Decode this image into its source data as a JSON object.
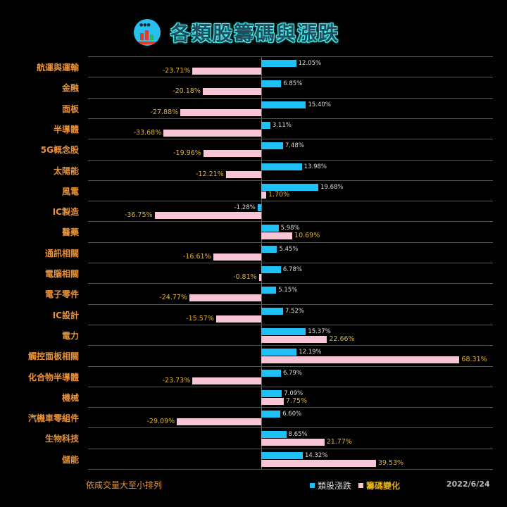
{
  "header": {
    "title": "各類股籌碼與漲跌",
    "logo_icon": "stock-chart-logo-icon"
  },
  "footer": {
    "note": "依成交量大至小排列",
    "date": "2022/6/24"
  },
  "legend": [
    {
      "label": "類股漲跌",
      "color": "#1ec0f5"
    },
    {
      "label": "籌碼變化",
      "color": "#f7c5d3"
    }
  ],
  "colors": {
    "background": "#000000",
    "price_change_bar": "#1ec0f5",
    "chip_change_bar": "#f7c5d3",
    "category_label": "#e8923a",
    "chip_value_label": "#e0b030"
  },
  "chart_data": {
    "type": "bar",
    "orientation": "horizontal",
    "title": "各類股籌碼與漲跌",
    "xlabel": "",
    "ylabel": "",
    "grid": true,
    "legend_position": "bottom",
    "categories": [
      "航運與運輸",
      "金融",
      "面板",
      "半導體",
      "5G概念股",
      "太陽能",
      "風電",
      "IC製造",
      "醫藥",
      "通訊相關",
      "電腦相關",
      "電子零件",
      "IC設計",
      "電力",
      "觸控面板相關",
      "化合物半導體",
      "機械",
      "汽機車零組件",
      "生物科技",
      "儲能"
    ],
    "series": [
      {
        "name": "類股漲跌",
        "values": [
          12.05,
          6.85,
          15.4,
          3.11,
          7.48,
          13.98,
          19.68,
          -1.28,
          5.98,
          5.45,
          6.78,
          5.15,
          7.52,
          15.37,
          12.19,
          6.79,
          7.09,
          6.6,
          8.65,
          14.32
        ],
        "labels": [
          "12.05%",
          "6.85%",
          "15.40%",
          "3.11%",
          "7.48%",
          "13.98%",
          "19.68%",
          "-1.28%",
          "5.98%",
          "5.45%",
          "6.78%",
          "5.15%",
          "7.52%",
          "15.37%",
          "12.19%",
          "6.79%",
          "7.09%",
          "6.60%",
          "8.65%",
          "14.32%"
        ]
      },
      {
        "name": "籌碼變化",
        "values": [
          -23.71,
          -20.18,
          -27.88,
          -33.68,
          -19.96,
          -12.21,
          1.7,
          -36.75,
          10.69,
          -16.61,
          -0.81,
          -24.77,
          -15.57,
          22.66,
          68.31,
          -23.73,
          7.75,
          -29.09,
          21.77,
          39.53
        ],
        "labels": [
          "-23.71%",
          "-20.18%",
          "-27.88%",
          "-33.68%",
          "-19.96%",
          "-12.21%",
          "1.70%",
          "-36.75%",
          "10.69%",
          "-16.61%",
          "-0.81%",
          "-24.77%",
          "-15.57%",
          "22.66%",
          "68.31%",
          "-23.73%",
          "7.75%",
          "-29.09%",
          "21.77%",
          "39.53%"
        ]
      }
    ],
    "note": "依成交量大至小排列",
    "date": "2022/6/24"
  }
}
